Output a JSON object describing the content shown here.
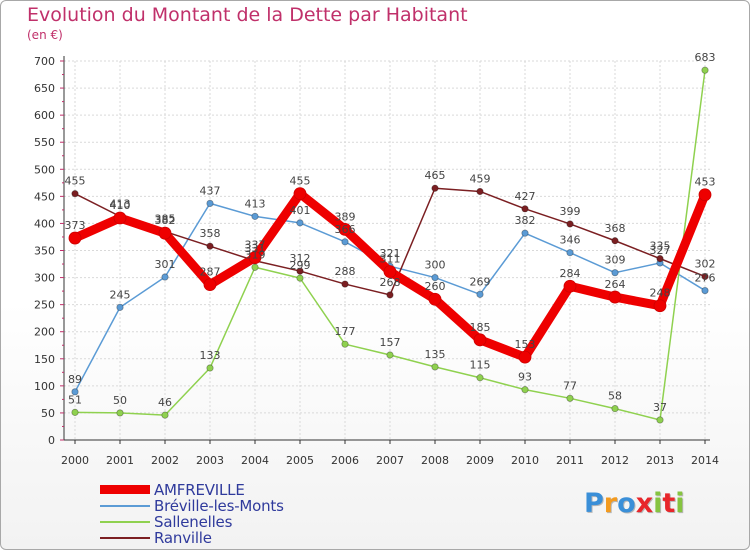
{
  "title": "Evolution du Montant de la Dette par Habitant",
  "unit": "(en €)",
  "logo": {
    "letters": [
      "P",
      "r",
      "o",
      "x",
      "i",
      "t",
      "i"
    ],
    "colors": [
      "#3a8fd8",
      "#f39a1e",
      "#3a8fd8",
      "#e8262b",
      "#86c440",
      "#e8262b",
      "#86c440"
    ]
  },
  "chart_data": {
    "type": "line",
    "title": "Evolution du Montant de la Dette par Habitant",
    "ylabel": "(en €)",
    "xlabel": "",
    "x": [
      "2000",
      "2001",
      "2002",
      "2003",
      "2004",
      "2005",
      "2006",
      "2007",
      "2008",
      "2009",
      "2010",
      "2011",
      "2012",
      "2013",
      "2014"
    ],
    "ylim": [
      0,
      700
    ],
    "yticks": [
      "0",
      "50",
      "100",
      "150",
      "200",
      "250",
      "300",
      "350",
      "400",
      "450",
      "500",
      "550",
      "600",
      "650",
      "700"
    ],
    "grid": true,
    "legend_position": "bottom-left",
    "series": [
      {
        "name": "AMFREVILLE",
        "color": "#ee0000",
        "values": [
          373,
          410,
          382,
          287,
          337,
          455,
          389,
          311,
          260,
          185,
          153,
          284,
          264,
          248,
          453
        ],
        "labels": [
          "373",
          "410",
          "382",
          "287",
          "337",
          "455",
          "389",
          "311",
          "260",
          "185",
          "153",
          "284",
          "264",
          "248",
          "453"
        ]
      },
      {
        "name": "Bréville-les-Monts",
        "color": "#5b9bd5",
        "values": [
          89,
          245,
          301,
          437,
          413,
          401,
          366,
          321,
          300,
          269,
          382,
          346,
          309,
          327,
          276
        ],
        "labels": [
          "89",
          "245",
          "301",
          "437",
          "413",
          "401",
          "366",
          "321",
          "300",
          "269",
          "382",
          "346",
          "309",
          "327",
          "276"
        ]
      },
      {
        "name": "Sallenelles",
        "color": "#8fd14f",
        "values": [
          51,
          50,
          46,
          133,
          319,
          299,
          177,
          157,
          135,
          115,
          93,
          77,
          58,
          37,
          683
        ],
        "labels": [
          "51",
          "50",
          "46",
          "133",
          "319",
          "299",
          "177",
          "157",
          "135",
          "115",
          "93",
          "77",
          "58",
          "37",
          "683"
        ]
      },
      {
        "name": "Ranville",
        "color": "#7b1f22",
        "values": [
          455,
          413,
          385,
          358,
          331,
          312,
          288,
          268,
          465,
          459,
          427,
          399,
          368,
          335,
          302
        ],
        "labels": [
          "455",
          "413",
          "385",
          "358",
          "331",
          "312",
          "288",
          "268",
          "465",
          "459",
          "427",
          "399",
          "368",
          "335",
          "302"
        ]
      }
    ]
  }
}
